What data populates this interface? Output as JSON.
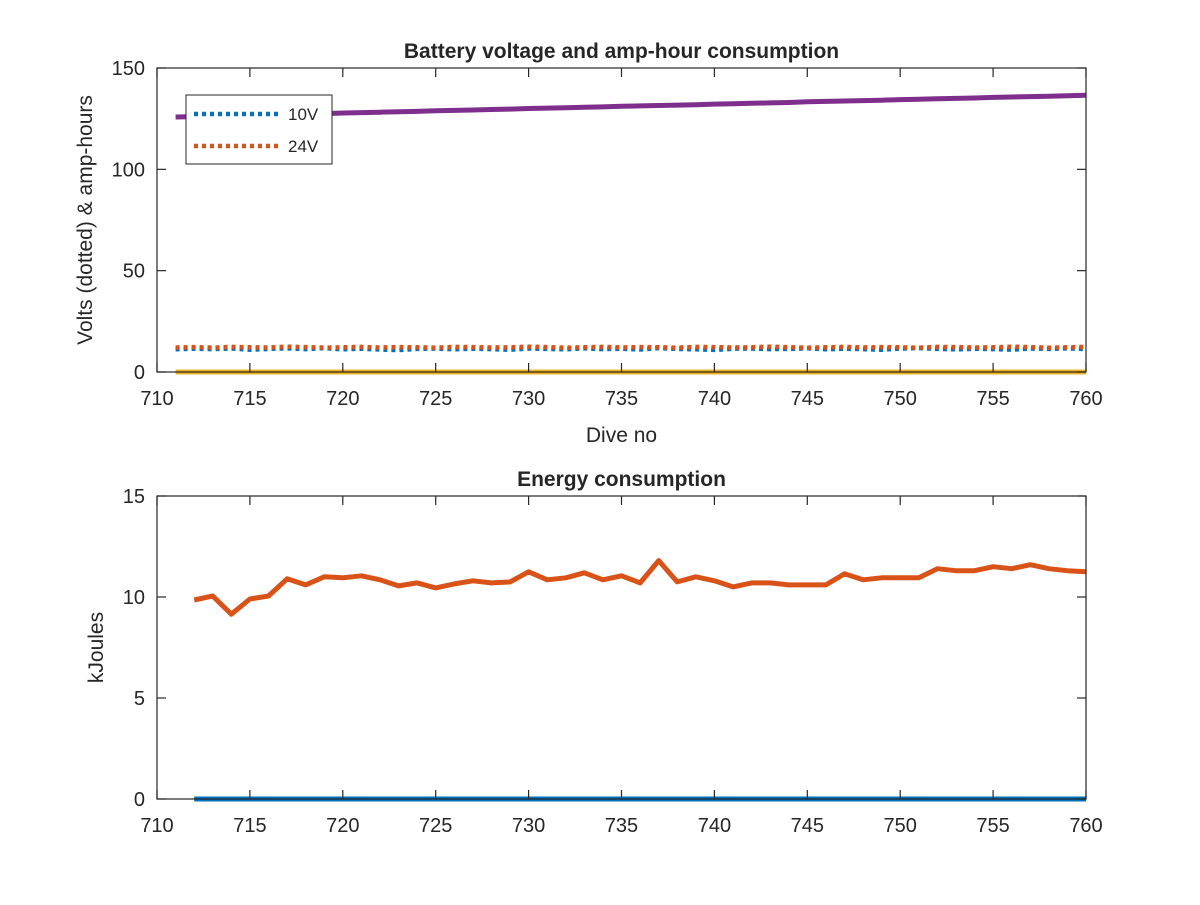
{
  "chart_data": [
    {
      "type": "line",
      "title": "Battery voltage and amp-hour consumption",
      "xlabel": "Dive no",
      "ylabel": "Volts (dotted) & amp-hours",
      "xlim": [
        710,
        760
      ],
      "ylim": [
        0,
        150
      ],
      "xticks": [
        710,
        715,
        720,
        725,
        730,
        735,
        740,
        745,
        750,
        755,
        760
      ],
      "yticks": [
        0,
        50,
        100,
        150
      ],
      "grid": false,
      "legend_position": "top-left",
      "x": [
        711,
        712,
        713,
        714,
        715,
        716,
        717,
        718,
        719,
        720,
        721,
        722,
        723,
        724,
        725,
        726,
        727,
        728,
        729,
        730,
        731,
        732,
        733,
        734,
        735,
        736,
        737,
        738,
        739,
        740,
        741,
        742,
        743,
        744,
        745,
        746,
        747,
        748,
        749,
        750,
        751,
        752,
        753,
        754,
        755,
        756,
        757,
        758,
        759,
        760
      ],
      "series": [
        {
          "name": "10V",
          "style": "dotted",
          "color": "#0072BD",
          "in_legend": true,
          "values": [
            11.2,
            11.5,
            11.3,
            11.6,
            11.0,
            11.4,
            11.7,
            11.3,
            11.8,
            11.2,
            11.5,
            11.1,
            10.8,
            11.4,
            11.6,
            11.2,
            11.5,
            11.3,
            11.0,
            11.6,
            11.4,
            11.2,
            11.7,
            11.3,
            11.5,
            11.1,
            11.8,
            11.4,
            11.2,
            10.9,
            11.5,
            11.6,
            11.3,
            11.4,
            11.7,
            11.2,
            11.5,
            11.3,
            11.0,
            11.6,
            11.8,
            11.4,
            11.2,
            11.5,
            11.3,
            11.0,
            11.6,
            11.4,
            11.7,
            11.3
          ]
        },
        {
          "name": "24V",
          "style": "dotted",
          "color": "#D95319",
          "in_legend": true,
          "values": [
            12.1,
            12.3,
            12.0,
            12.4,
            12.2,
            12.1,
            12.5,
            12.3,
            12.0,
            12.2,
            12.4,
            12.1,
            12.3,
            12.2,
            12.0,
            12.4,
            12.3,
            12.1,
            12.2,
            12.5,
            12.3,
            12.0,
            12.2,
            12.4,
            12.1,
            12.3,
            12.2,
            12.0,
            12.4,
            12.3,
            12.1,
            12.2,
            12.5,
            12.3,
            12.0,
            12.2,
            12.4,
            12.1,
            12.3,
            12.2,
            12.0,
            12.4,
            12.3,
            12.1,
            12.2,
            12.5,
            12.3,
            12.0,
            12.2,
            12.4
          ]
        },
        {
          "style": "solid",
          "color": "#EDB120",
          "in_legend": false,
          "values": [
            0,
            0,
            0,
            0,
            0,
            0,
            0,
            0,
            0,
            0,
            0,
            0,
            0,
            0,
            0,
            0,
            0,
            0,
            0,
            0,
            0,
            0,
            0,
            0,
            0,
            0,
            0,
            0,
            0,
            0,
            0,
            0,
            0,
            0,
            0,
            0,
            0,
            0,
            0,
            0,
            0,
            0,
            0,
            0,
            0,
            0,
            0,
            0,
            0,
            0
          ]
        },
        {
          "style": "solid",
          "color": "#7E2F8E",
          "in_legend": false,
          "values": [
            125.8,
            126.0,
            126.2,
            126.5,
            126.7,
            126.9,
            127.1,
            127.3,
            127.5,
            127.8,
            128.0,
            128.2,
            128.4,
            128.6,
            128.9,
            129.1,
            129.3,
            129.5,
            129.7,
            130.0,
            130.2,
            130.4,
            130.6,
            130.8,
            131.1,
            131.3,
            131.5,
            131.7,
            131.9,
            132.2,
            132.4,
            132.6,
            132.8,
            133.0,
            133.3,
            133.5,
            133.7,
            133.9,
            134.1,
            134.4,
            134.6,
            134.8,
            135.0,
            135.2,
            135.5,
            135.7,
            135.9,
            136.1,
            136.3,
            136.6
          ]
        }
      ]
    },
    {
      "type": "line",
      "title": "Energy consumption",
      "xlabel": "",
      "ylabel": "kJoules",
      "xlim": [
        710,
        760
      ],
      "ylim": [
        0,
        15
      ],
      "xticks": [
        710,
        715,
        720,
        725,
        730,
        735,
        740,
        745,
        750,
        755,
        760
      ],
      "yticks": [
        0,
        5,
        10,
        15
      ],
      "grid": false,
      "x": [
        712,
        713,
        714,
        715,
        716,
        717,
        718,
        719,
        720,
        721,
        722,
        723,
        724,
        725,
        726,
        727,
        728,
        729,
        730,
        731,
        732,
        733,
        734,
        735,
        736,
        737,
        738,
        739,
        740,
        741,
        742,
        743,
        744,
        745,
        746,
        747,
        748,
        749,
        750,
        751,
        752,
        753,
        754,
        755,
        756,
        757,
        758,
        759,
        760
      ],
      "series": [
        {
          "style": "solid",
          "color": "#D95319",
          "values": [
            9.85,
            10.05,
            9.15,
            9.9,
            10.05,
            10.9,
            10.6,
            11.0,
            10.95,
            11.05,
            10.85,
            10.55,
            10.7,
            10.45,
            10.65,
            10.8,
            10.7,
            10.75,
            11.25,
            10.85,
            10.95,
            11.2,
            10.85,
            11.05,
            10.7,
            11.8,
            10.75,
            11.0,
            10.8,
            10.5,
            10.7,
            10.7,
            10.6,
            10.6,
            10.6,
            11.15,
            10.85,
            10.95,
            10.95,
            10.95,
            11.4,
            11.3,
            11.3,
            11.5,
            11.4,
            11.6,
            11.4,
            11.3,
            11.25
          ]
        },
        {
          "style": "solid",
          "color": "#0072BD",
          "values": [
            0,
            0,
            0,
            0,
            0,
            0,
            0,
            0,
            0,
            0,
            0,
            0,
            0,
            0,
            0,
            0,
            0,
            0,
            0,
            0,
            0,
            0,
            0,
            0,
            0,
            0,
            0,
            0,
            0,
            0,
            0,
            0,
            0,
            0,
            0,
            0,
            0,
            0,
            0,
            0,
            0,
            0,
            0,
            0,
            0,
            0,
            0,
            0,
            0
          ]
        }
      ]
    }
  ]
}
